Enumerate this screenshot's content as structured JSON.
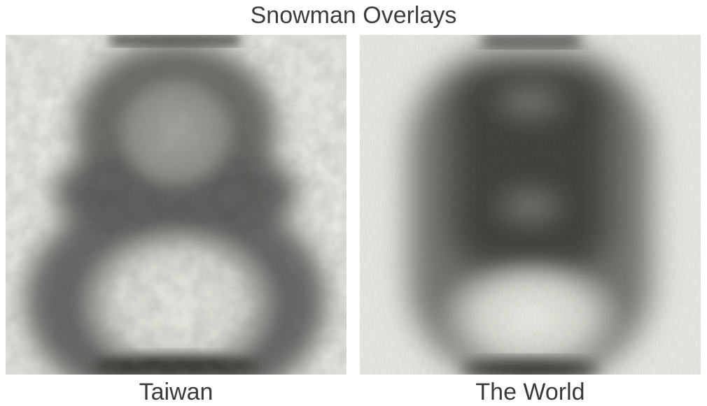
{
  "title": "Snowman Overlays",
  "panels": [
    {
      "caption": "Taiwan"
    },
    {
      "caption": "The World"
    }
  ],
  "colors": {
    "background": "#ffffff",
    "paper": "#edece6",
    "ink": "#383b38"
  }
}
